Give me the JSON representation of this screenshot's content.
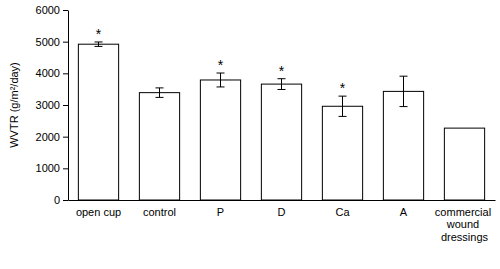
{
  "chart_data": {
    "type": "bar",
    "y_label": "WVTR (g/m²/day)",
    "categories": [
      "open cup",
      "control",
      "P",
      "D",
      "Ca",
      "A",
      "commercial wound dressings"
    ],
    "values": [
      4920,
      3390,
      3790,
      3660,
      2960,
      3430,
      2270
    ],
    "errors": [
      70,
      150,
      220,
      170,
      320,
      480,
      null
    ],
    "annotations": [
      "*",
      null,
      "*",
      "*",
      "*",
      null,
      null
    ],
    "color": "#ffffff",
    "ylim": [
      0,
      6000
    ],
    "yticks": [
      0,
      1000,
      2000,
      3000,
      4000,
      5000,
      6000
    ],
    "grid": false
  }
}
